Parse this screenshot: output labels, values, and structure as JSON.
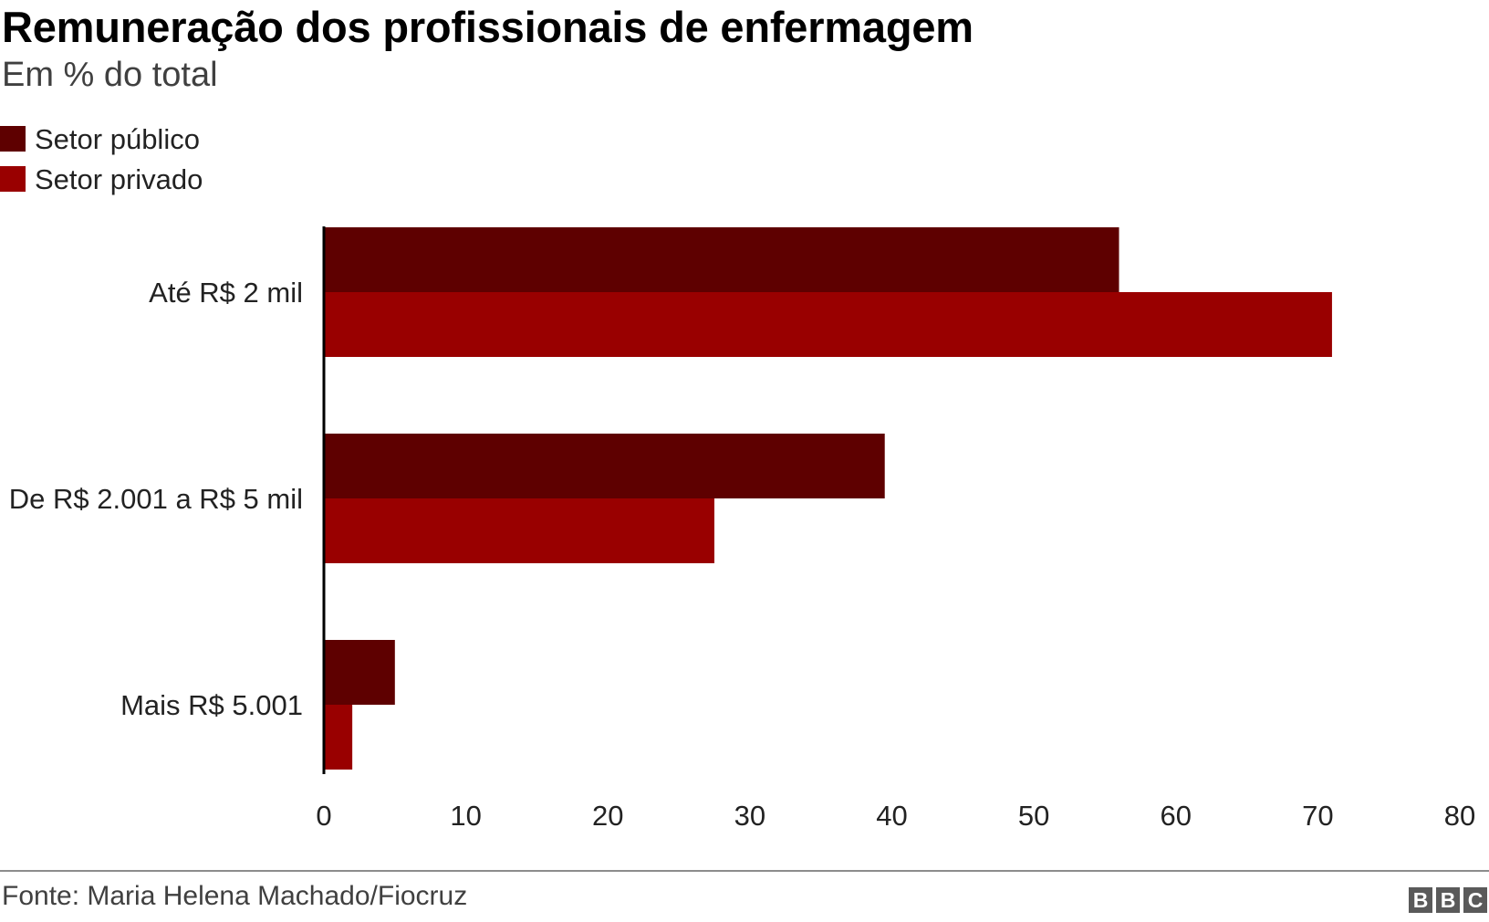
{
  "chart_data": {
    "type": "bar",
    "orientation": "horizontal",
    "title": "Remuneração dos profissionais de enfermagem",
    "subtitle": "Em % do total",
    "categories": [
      "Até R$ 2 mil",
      "De R$ 2.001 a R$ 5 mil",
      "Mais R$ 5.001"
    ],
    "series": [
      {
        "name": "Setor público",
        "color": "#5e0000",
        "values": [
          56,
          39.5,
          5
        ]
      },
      {
        "name": "Setor privado",
        "color": "#990000",
        "values": [
          71,
          27.5,
          2
        ]
      }
    ],
    "xlim": [
      0,
      80
    ],
    "xticks": [
      "0",
      "10",
      "20",
      "30",
      "40",
      "50",
      "60",
      "70",
      "80"
    ],
    "xlabel": "",
    "ylabel": "",
    "grid": false,
    "legend_position": "top-left"
  },
  "footer": {
    "source": "Fonte: Maria Helena Machado/Fiocruz",
    "logo_letters": [
      "B",
      "B",
      "C"
    ]
  }
}
